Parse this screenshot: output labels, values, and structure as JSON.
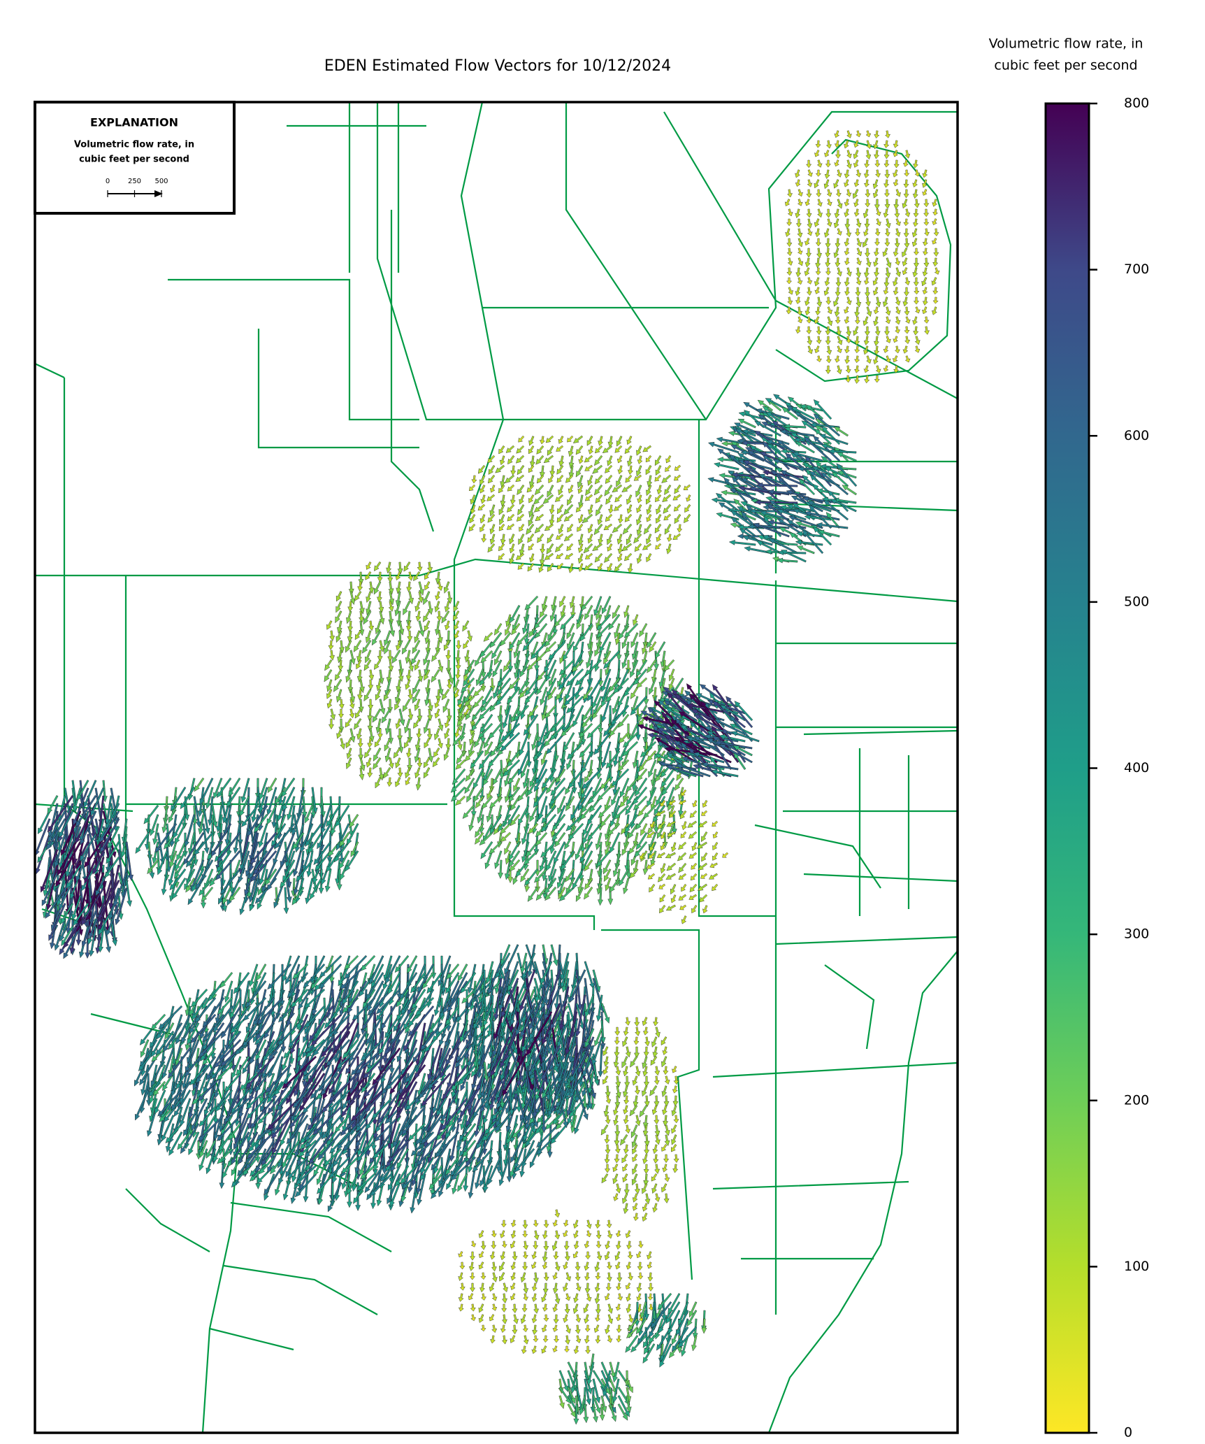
{
  "title": "EDEN Estimated Flow Vectors for 10/12/2024",
  "colorbar": {
    "label_lines": [
      "Volumetric flow rate, in",
      "cubic feet per second"
    ],
    "lim": [
      0,
      800
    ],
    "ticks": [
      0,
      100,
      200,
      300,
      400,
      500,
      600,
      700,
      800
    ]
  },
  "explanation": {
    "title": "EXPLANATION",
    "label_lines": [
      "Volumetric flow rate, in",
      "cubic feet per second"
    ],
    "scale_ticks": [
      0,
      250,
      500
    ]
  }
}
